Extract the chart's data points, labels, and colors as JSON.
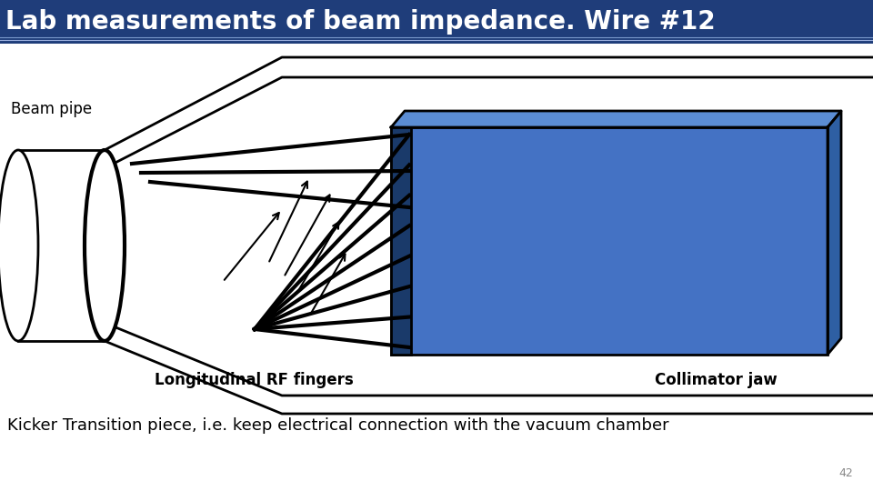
{
  "title": "Lab measurements of beam impedance. Wire #12",
  "title_bg_color": "#1F3D7A",
  "title_text_color": "#FFFFFF",
  "subtitle": "Kicker Transition piece, i.e. keep electrical connection with the vacuum chamber",
  "page_number": "42",
  "bg_color": "#FFFFFF",
  "collimator_color": "#4472C4",
  "collimator_top_color": "#5B8DD4",
  "collimator_right_color": "#2E5FA3",
  "collimator_front_color": "#1A3A6A",
  "label_beam_pipe": "Beam pipe",
  "label_rf_fingers": "Longitudinal RF fingers",
  "label_collimator": "Collimator jaw",
  "title_fontsize": 20,
  "label_fontsize": 12,
  "subtitle_fontsize": 13
}
